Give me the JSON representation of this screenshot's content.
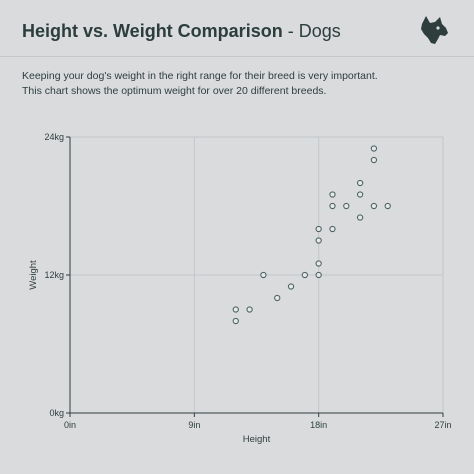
{
  "header": {
    "title_main": "Height vs. Weight Comparison",
    "title_separator": " - ",
    "title_sub": "Dogs",
    "logo_icon": "dog-head-icon"
  },
  "description": {
    "line1": "Keeping your dog's weight in the right range for their breed is very important.",
    "line2": "This chart shows the optimum weight for over 20 different breeds."
  },
  "colors": {
    "background": "#d9dbdd",
    "text": "#2f3e3e",
    "marker": "#4e6563",
    "grid": "#c3c7ca"
  },
  "chart_data": {
    "type": "scatter",
    "xlabel": "Height",
    "ylabel": "Weight",
    "xlim": [
      0,
      27
    ],
    "ylim": [
      0,
      24
    ],
    "x_ticks": [
      {
        "value": 0,
        "label": "0in"
      },
      {
        "value": 9,
        "label": "9in"
      },
      {
        "value": 18,
        "label": "18in"
      },
      {
        "value": 27,
        "label": "27in"
      }
    ],
    "y_ticks": [
      {
        "value": 0,
        "label": "0kg"
      },
      {
        "value": 12,
        "label": "12kg"
      },
      {
        "value": 24,
        "label": "24kg"
      }
    ],
    "grid": true,
    "points": [
      {
        "x": 12,
        "y": 8
      },
      {
        "x": 12,
        "y": 9
      },
      {
        "x": 13,
        "y": 9
      },
      {
        "x": 14,
        "y": 12
      },
      {
        "x": 15,
        "y": 10
      },
      {
        "x": 16,
        "y": 11
      },
      {
        "x": 17,
        "y": 12
      },
      {
        "x": 18,
        "y": 12
      },
      {
        "x": 18,
        "y": 13
      },
      {
        "x": 18,
        "y": 15
      },
      {
        "x": 18,
        "y": 16
      },
      {
        "x": 19,
        "y": 16
      },
      {
        "x": 19,
        "y": 18
      },
      {
        "x": 19,
        "y": 19
      },
      {
        "x": 20,
        "y": 18
      },
      {
        "x": 21,
        "y": 17
      },
      {
        "x": 21,
        "y": 19
      },
      {
        "x": 21,
        "y": 20
      },
      {
        "x": 22,
        "y": 18
      },
      {
        "x": 22,
        "y": 22
      },
      {
        "x": 22,
        "y": 23
      },
      {
        "x": 23,
        "y": 18
      }
    ]
  }
}
